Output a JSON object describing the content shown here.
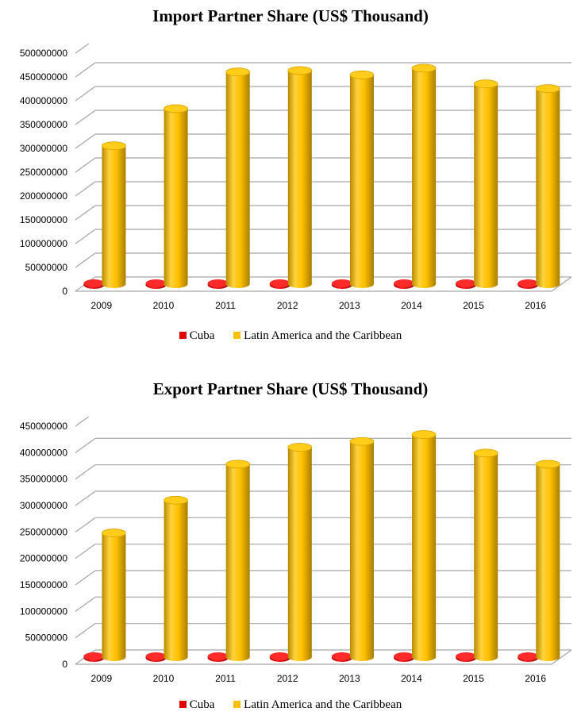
{
  "colors": {
    "cuba": "#e00000",
    "latam": "#ffc000",
    "grid": "#a6a6a6"
  },
  "chart_data": [
    {
      "type": "bar",
      "title": "Import Partner Share (US$ Thousand)",
      "categories": [
        "2009",
        "2010",
        "2011",
        "2012",
        "2013",
        "2014",
        "2015",
        "2016"
      ],
      "ylim": [
        0,
        500000000
      ],
      "yticks": [
        "0",
        "50000000",
        "100000000",
        "150000000",
        "200000000",
        "250000000",
        "300000000",
        "350000000",
        "400000000",
        "450000000",
        "500000000"
      ],
      "series": [
        {
          "name": "Cuba",
          "values": [
            600000,
            600000,
            600000,
            600000,
            600000,
            600000,
            600000,
            600000
          ]
        },
        {
          "name": "Latin America and the Caribbean",
          "values": [
            292000000,
            370000000,
            447000000,
            450000000,
            441000000,
            455000000,
            422000000,
            412000000
          ]
        }
      ],
      "legend": "bottom"
    },
    {
      "type": "bar",
      "title": "Export Partner Share (US$ Thousand)",
      "categories": [
        "2009",
        "2010",
        "2011",
        "2012",
        "2013",
        "2014",
        "2015",
        "2016"
      ],
      "ylim": [
        0,
        450000000
      ],
      "yticks": [
        "0",
        "50000000",
        "100000000",
        "150000000",
        "200000000",
        "250000000",
        "300000000",
        "350000000",
        "400000000",
        "450000000"
      ],
      "series": [
        {
          "name": "Cuba",
          "values": [
            400000,
            400000,
            400000,
            400000,
            400000,
            400000,
            400000,
            400000
          ]
        },
        {
          "name": "Latin America and the Caribbean",
          "values": [
            236000000,
            298000000,
            366000000,
            398000000,
            409000000,
            422000000,
            387000000,
            366000000
          ]
        }
      ],
      "legend": "bottom"
    }
  ]
}
